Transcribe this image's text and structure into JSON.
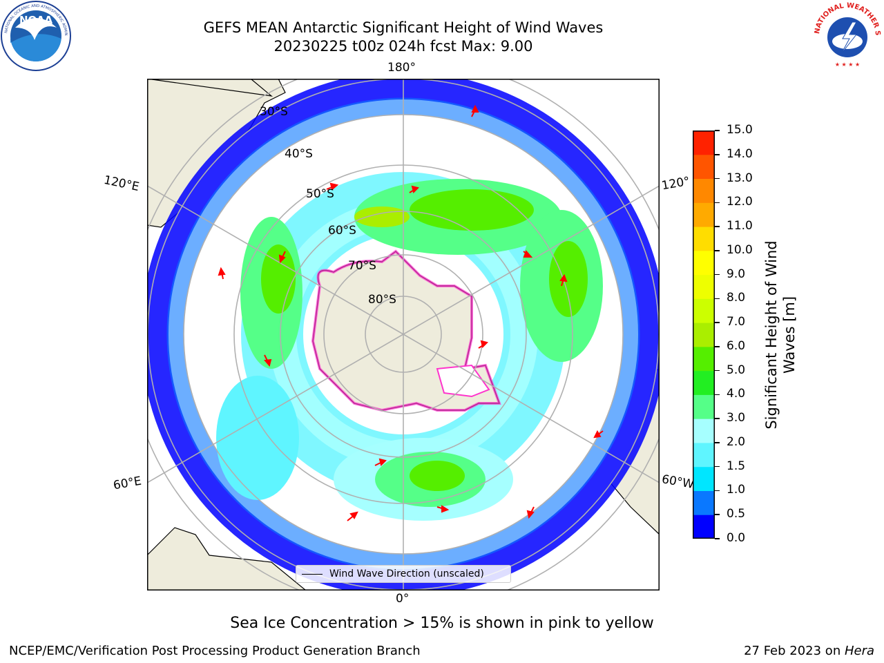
{
  "title": {
    "line1": "GEFS MEAN Antarctic Significant Height of Wind Waves",
    "line2": "20230225 t00z 024h fcst   Max: 9.00"
  },
  "map": {
    "projection": "south polar stereographic",
    "longitude_labels": {
      "top": "180°",
      "left_upper": "120°E",
      "right_upper": "120°",
      "left_lower": "60°E",
      "right_lower": "60°W",
      "bottom": "0°"
    },
    "latitude_labels": [
      "30°S",
      "40°S",
      "50°S",
      "60°S",
      "70°S",
      "80°S"
    ],
    "legend_label": "Wind Wave Direction (unscaled)",
    "colors": {
      "land": "#eeecdc",
      "ocean": "#ffffff",
      "grid": "#b0b0b0",
      "arrow": "#ff0000",
      "sea_ice": "#ff33cc"
    }
  },
  "colorbar": {
    "label_line1": "Significant Height of Wind",
    "label_line2": "Waves [m]",
    "ticks": [
      "0.0",
      "0.5",
      "1.0",
      "1.5",
      "2.0",
      "3.0",
      "4.0",
      "5.0",
      "6.0",
      "7.0",
      "8.0",
      "9.0",
      "10.0",
      "11.0",
      "12.0",
      "13.0",
      "14.0",
      "15.0"
    ],
    "colors": [
      "#0000ff",
      "#0a78ff",
      "#00e6ff",
      "#5ff5ff",
      "#a6ffff",
      "#55ff88",
      "#22ee22",
      "#55ee00",
      "#aaee00",
      "#ccff00",
      "#eeff00",
      "#ffff00",
      "#ffdd00",
      "#ffaa00",
      "#ff8800",
      "#ff5500",
      "#ff2200"
    ]
  },
  "note": "Sea Ice Concentration > 15% is shown in pink to yellow",
  "footer": {
    "left": "NCEP/EMC/Verification Post Processing Product Generation Branch",
    "right_prefix": "27 Feb 2023 on ",
    "right_italic": "Hera"
  },
  "logos": {
    "left": "NOAA",
    "left_ring": "NATIONAL OCEANIC AND ATMOSPHERIC ADMINISTRATION",
    "right_ring": "NATIONAL WEATHER SERVICE"
  }
}
